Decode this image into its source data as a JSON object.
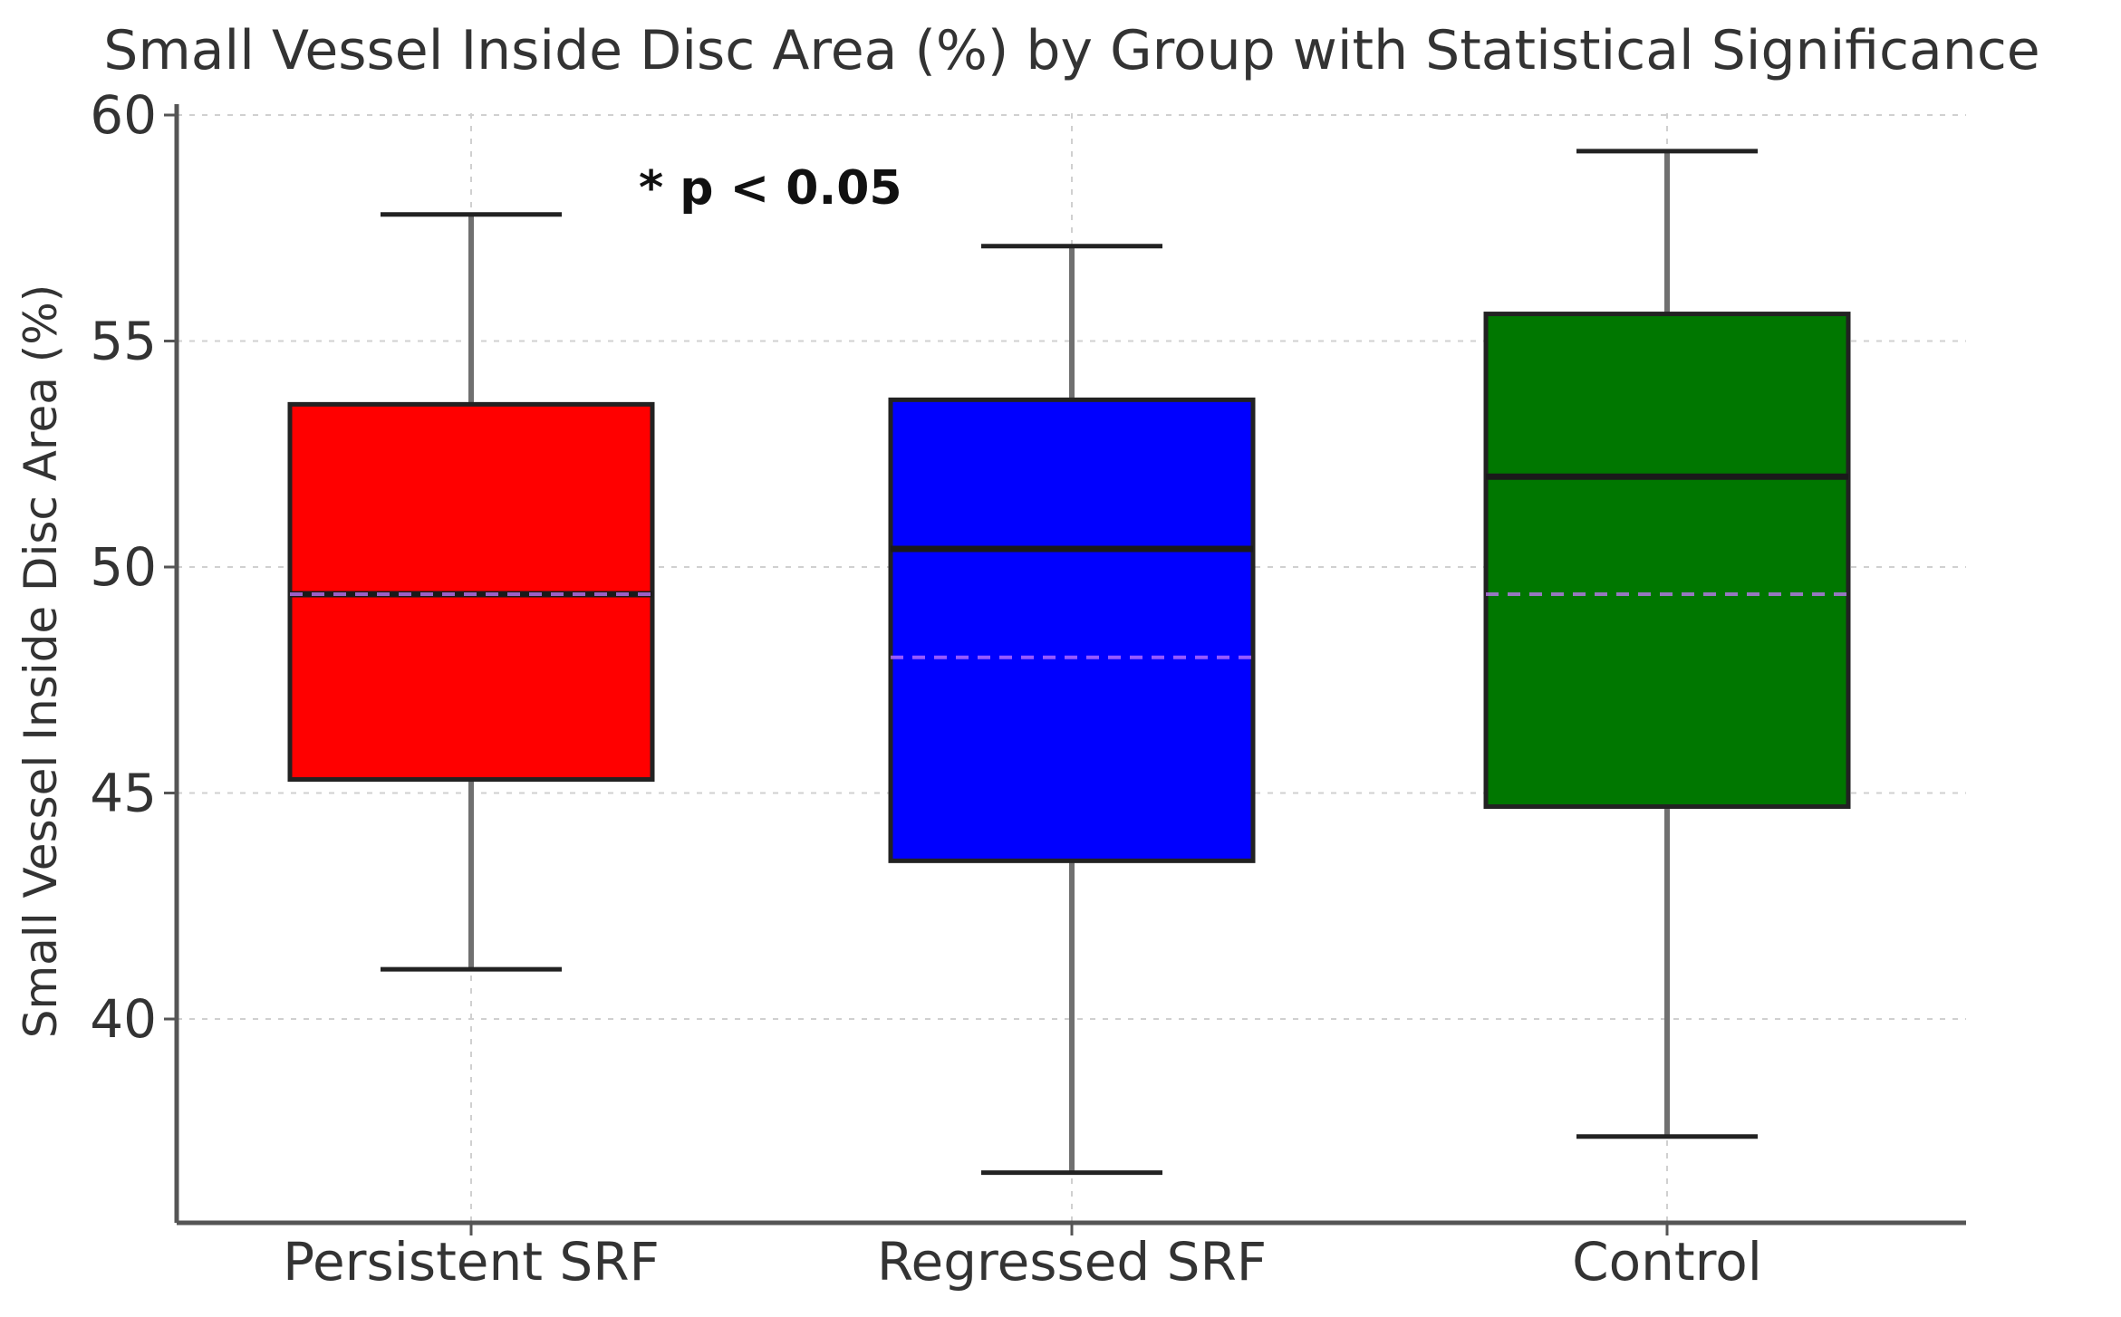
{
  "chart_data": {
    "type": "box",
    "title": "Small Vessel Inside Disc Area (%) by Group with Statistical Significance",
    "xlabel": "",
    "ylabel": "Small Vessel Inside Disc Area (%)",
    "ylim": [
      35,
      60
    ],
    "yticks": [
      40,
      45,
      50,
      55,
      60
    ],
    "ytick_labels": [
      "40",
      "45",
      "50",
      "55",
      "60"
    ],
    "grid": true,
    "annotation": "* p < 0.05",
    "groups": [
      {
        "name": "Persistent SRF",
        "color": "#ff0000",
        "whisker_low": 41.1,
        "q1": 45.3,
        "median": 49.4,
        "mean": 49.4,
        "q3": 53.6,
        "whisker_high": 57.8
      },
      {
        "name": "Regressed SRF",
        "color": "#0000ff",
        "whisker_low": 36.6,
        "q1": 43.5,
        "median": 50.4,
        "mean": 48.0,
        "q3": 53.7,
        "whisker_high": 57.1
      },
      {
        "name": "Control",
        "color": "#007700",
        "whisker_low": 37.4,
        "q1": 44.7,
        "median": 52.0,
        "mean": 49.4,
        "q3": 55.6,
        "whisker_high": 59.2
      }
    ]
  }
}
